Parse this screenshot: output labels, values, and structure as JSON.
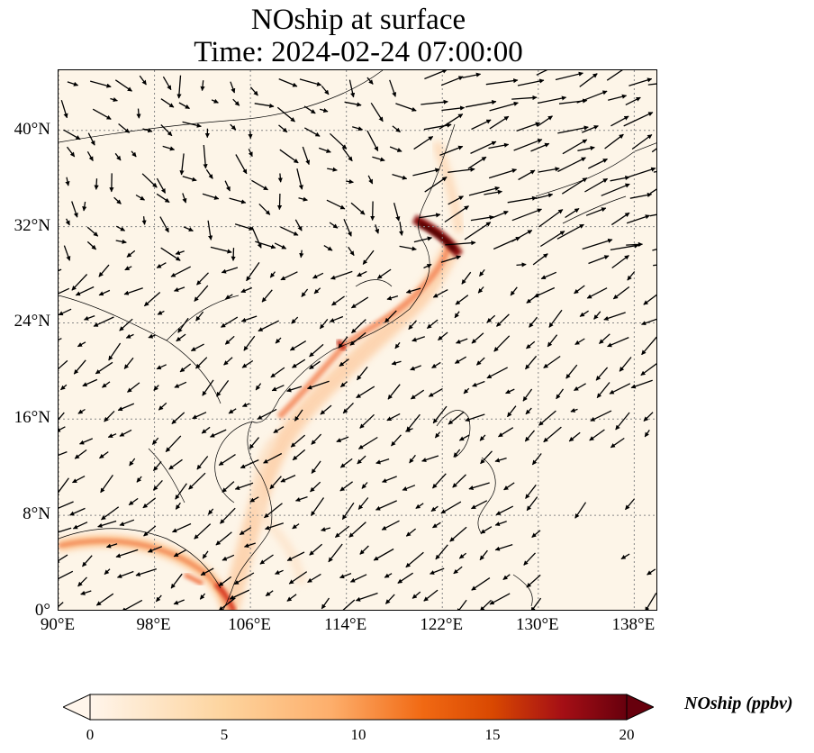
{
  "title_line1": "NOship at surface",
  "title_line2": "Time: 2024-02-24 07:00:00",
  "map": {
    "lon_range": [
      90,
      140
    ],
    "lat_range": [
      0,
      45
    ],
    "gridlines": true,
    "lat_ticks": [
      {
        "value": 40,
        "label": "40°N"
      },
      {
        "value": 32,
        "label": "32°N"
      },
      {
        "value": 24,
        "label": "24°N"
      },
      {
        "value": 16,
        "label": "16°N"
      },
      {
        "value": 8,
        "label": "8°N"
      },
      {
        "value": 0,
        "label": "0°"
      }
    ],
    "lon_ticks": [
      {
        "value": 90,
        "label": "90°E"
      },
      {
        "value": 98,
        "label": "98°E"
      },
      {
        "value": 106,
        "label": "106°E"
      },
      {
        "value": 114,
        "label": "114°E"
      },
      {
        "value": 122,
        "label": "122°E"
      },
      {
        "value": 130,
        "label": "130°E"
      },
      {
        "value": 138,
        "label": "138°E"
      }
    ]
  },
  "colorbar": {
    "label": "NOship (ppbv)",
    "min": 0,
    "max": 20,
    "extend": "both",
    "ticks": [
      "0",
      "5",
      "10",
      "15",
      "20"
    ],
    "colors": [
      "#fff5eb",
      "#fdd49e",
      "#fdae6b",
      "#f16913",
      "#d94801",
      "#a50f15",
      "#67000d"
    ]
  }
}
